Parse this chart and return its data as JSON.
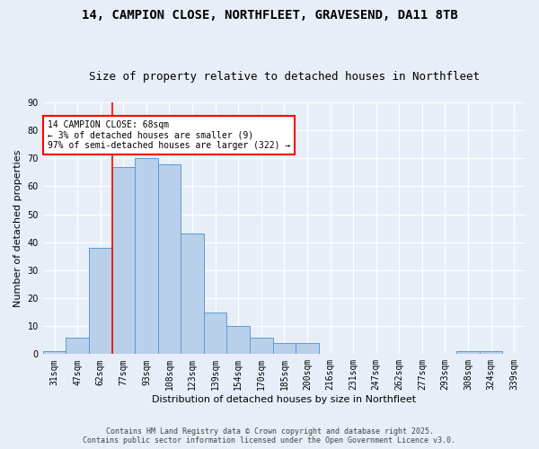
{
  "title1": "14, CAMPION CLOSE, NORTHFLEET, GRAVESEND, DA11 8TB",
  "title2": "Size of property relative to detached houses in Northfleet",
  "xlabel": "Distribution of detached houses by size in Northfleet",
  "ylabel": "Number of detached properties",
  "bin_labels": [
    "31sqm",
    "47sqm",
    "62sqm",
    "77sqm",
    "93sqm",
    "108sqm",
    "123sqm",
    "139sqm",
    "154sqm",
    "170sqm",
    "185sqm",
    "200sqm",
    "216sqm",
    "231sqm",
    "247sqm",
    "262sqm",
    "277sqm",
    "293sqm",
    "308sqm",
    "324sqm",
    "339sqm"
  ],
  "bar_values": [
    1,
    6,
    38,
    67,
    70,
    68,
    43,
    15,
    10,
    6,
    4,
    4,
    0,
    0,
    0,
    0,
    0,
    0,
    1,
    1,
    0
  ],
  "bar_color": "#b8d0ea",
  "bar_edge_color": "#5b9bd5",
  "ylim": [
    0,
    90
  ],
  "yticks": [
    0,
    10,
    20,
    30,
    40,
    50,
    60,
    70,
    80,
    90
  ],
  "vline_index": 2,
  "vline_color": "red",
  "annotation_title": "14 CAMPION CLOSE: 68sqm",
  "annotation_line1": "← 3% of detached houses are smaller (9)",
  "annotation_line2": "97% of semi-detached houses are larger (322) →",
  "footer1": "Contains HM Land Registry data © Crown copyright and database right 2025.",
  "footer2": "Contains public sector information licensed under the Open Government Licence v3.0.",
  "background_color": "#e8eef7",
  "grid_color": "#ffffff",
  "title_fontsize": 10,
  "subtitle_fontsize": 9,
  "axis_fontsize": 8,
  "tick_fontsize": 7,
  "annotation_fontsize": 7,
  "footer_fontsize": 6
}
